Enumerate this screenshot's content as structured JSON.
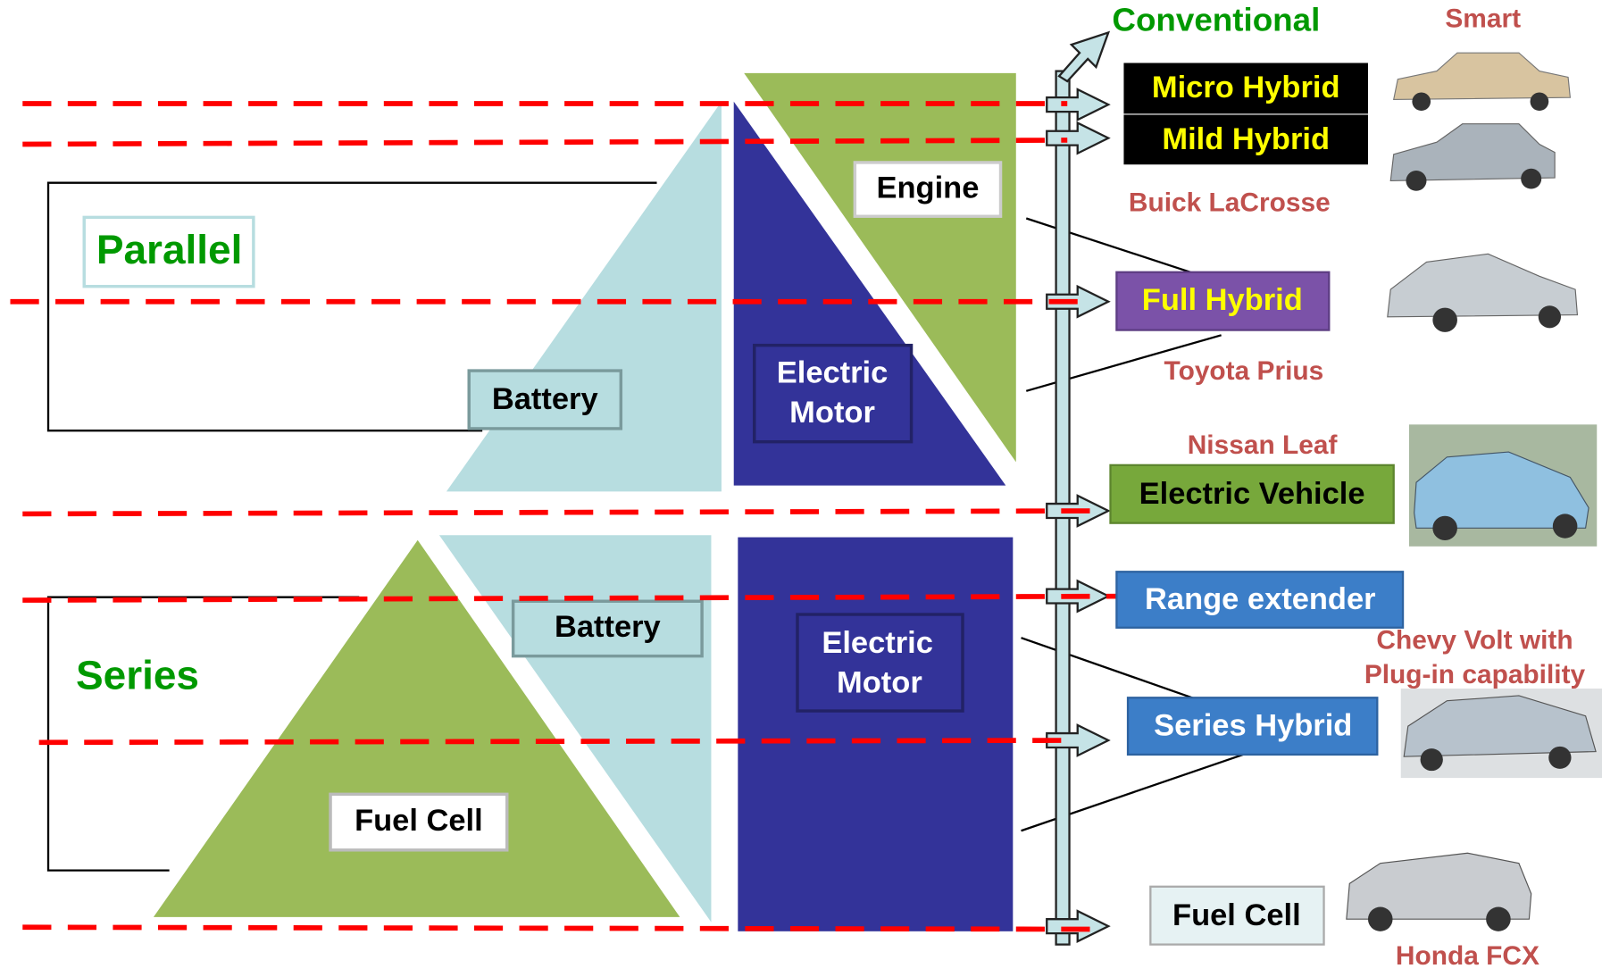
{
  "groups": {
    "parallel": "Parallel",
    "series": "Series"
  },
  "components": {
    "engine": "Engine",
    "parallel_motor": [
      "Electric",
      "Motor"
    ],
    "parallel_battery": "Battery",
    "series_battery": "Battery",
    "series_motor": [
      "Electric",
      "Motor"
    ],
    "fuel_cell": "Fuel Cell"
  },
  "axis_top": "Conventional",
  "vehicle_types": [
    "Micro Hybrid",
    "Mild Hybrid",
    "Full Hybrid",
    "Electric Vehicle",
    "Range extender",
    "Series Hybrid",
    "Fuel Cell"
  ],
  "examples": {
    "smart": "Smart",
    "buick": "Buick LaCrosse",
    "prius": "Toyota Prius",
    "leaf": "Nissan Leaf",
    "volt": [
      "Chevy Volt with",
      "Plug-in capability"
    ],
    "honda": "Honda FCX"
  }
}
